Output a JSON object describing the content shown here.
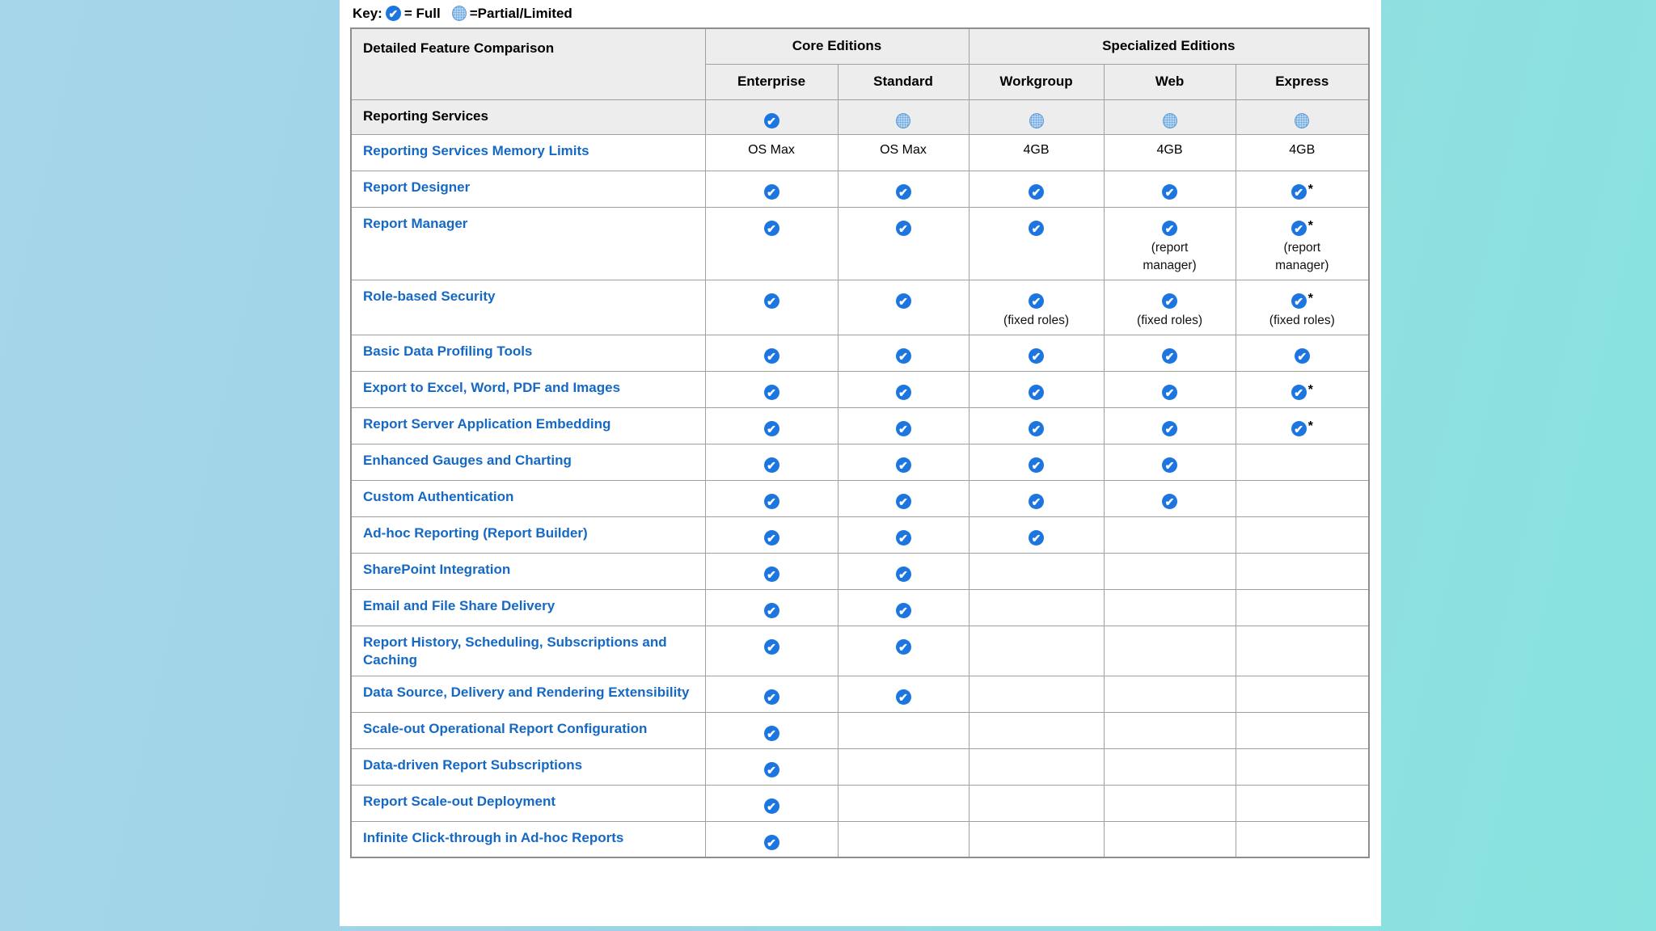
{
  "colors": {
    "bg_left": "#a6d7e9",
    "bg_right": "#87e3df",
    "page_bg": "#ffffff",
    "header_bg": "#ededed",
    "link_blue": "#1569c4",
    "icon_blue": "#1d76e0",
    "partial_fill": "#b3d4f2",
    "partial_border": "#5e9ad2",
    "border_grey": "#a0a0a0"
  },
  "icons": {
    "full": "check-circle-icon",
    "partial": "dotted-circle-icon"
  },
  "key": {
    "label": "Key:",
    "full_text": "= Full",
    "partial_text": "=Partial/Limited",
    "asterisk_symbol": "*"
  },
  "table": {
    "corner_header": "Detailed Feature Comparison",
    "groups": [
      {
        "label": "Core Editions",
        "span": 2
      },
      {
        "label": "Specialized Editions",
        "span": 3
      }
    ],
    "editions": [
      "Enterprise",
      "Standard",
      "Workgroup",
      "Web",
      "Express"
    ],
    "rows": [
      {
        "feature": "Reporting Services",
        "section": true,
        "cells": [
          {
            "type": "full"
          },
          {
            "type": "partial"
          },
          {
            "type": "partial"
          },
          {
            "type": "partial"
          },
          {
            "type": "partial"
          }
        ]
      },
      {
        "feature": "Reporting Services Memory Limits",
        "cells": [
          {
            "type": "text",
            "text": "OS Max"
          },
          {
            "type": "text",
            "text": "OS Max"
          },
          {
            "type": "text",
            "text": "4GB"
          },
          {
            "type": "text",
            "text": "4GB"
          },
          {
            "type": "text",
            "text": "4GB"
          }
        ]
      },
      {
        "feature": "Report Designer",
        "cells": [
          {
            "type": "full"
          },
          {
            "type": "full"
          },
          {
            "type": "full"
          },
          {
            "type": "full"
          },
          {
            "type": "full",
            "star": true
          }
        ]
      },
      {
        "feature": "Report Manager",
        "cells": [
          {
            "type": "full"
          },
          {
            "type": "full"
          },
          {
            "type": "full"
          },
          {
            "type": "full",
            "note": "(report manager)"
          },
          {
            "type": "full",
            "star": true,
            "note": "(report manager)"
          }
        ]
      },
      {
        "feature": "Role-based Security",
        "cells": [
          {
            "type": "full"
          },
          {
            "type": "full"
          },
          {
            "type": "full",
            "note": "(fixed roles)"
          },
          {
            "type": "full",
            "note": "(fixed roles)"
          },
          {
            "type": "full",
            "star": true,
            "note": "(fixed roles)"
          }
        ]
      },
      {
        "feature": "Basic Data Profiling Tools",
        "cells": [
          {
            "type": "full"
          },
          {
            "type": "full"
          },
          {
            "type": "full"
          },
          {
            "type": "full"
          },
          {
            "type": "full"
          }
        ]
      },
      {
        "feature": "Export to Excel, Word, PDF and Images",
        "cells": [
          {
            "type": "full"
          },
          {
            "type": "full"
          },
          {
            "type": "full"
          },
          {
            "type": "full"
          },
          {
            "type": "full",
            "star": true
          }
        ]
      },
      {
        "feature": "Report Server Application Embedding",
        "cells": [
          {
            "type": "full"
          },
          {
            "type": "full"
          },
          {
            "type": "full"
          },
          {
            "type": "full"
          },
          {
            "type": "full",
            "star": true
          }
        ]
      },
      {
        "feature": "Enhanced Gauges and Charting",
        "cells": [
          {
            "type": "full"
          },
          {
            "type": "full"
          },
          {
            "type": "full"
          },
          {
            "type": "full"
          },
          {
            "type": "empty"
          }
        ]
      },
      {
        "feature": "Custom Authentication",
        "cells": [
          {
            "type": "full"
          },
          {
            "type": "full"
          },
          {
            "type": "full"
          },
          {
            "type": "full"
          },
          {
            "type": "empty"
          }
        ]
      },
      {
        "feature": "Ad-hoc Reporting (Report Builder)",
        "cells": [
          {
            "type": "full"
          },
          {
            "type": "full"
          },
          {
            "type": "full"
          },
          {
            "type": "empty"
          },
          {
            "type": "empty"
          }
        ]
      },
      {
        "feature": "SharePoint Integration",
        "cells": [
          {
            "type": "full"
          },
          {
            "type": "full"
          },
          {
            "type": "empty"
          },
          {
            "type": "empty"
          },
          {
            "type": "empty"
          }
        ]
      },
      {
        "feature": "Email and File Share Delivery",
        "cells": [
          {
            "type": "full"
          },
          {
            "type": "full"
          },
          {
            "type": "empty"
          },
          {
            "type": "empty"
          },
          {
            "type": "empty"
          }
        ]
      },
      {
        "feature": "Report History, Scheduling, Subscriptions and Caching",
        "cells": [
          {
            "type": "full"
          },
          {
            "type": "full"
          },
          {
            "type": "empty"
          },
          {
            "type": "empty"
          },
          {
            "type": "empty"
          }
        ]
      },
      {
        "feature": "Data Source, Delivery and Rendering Extensibility",
        "cells": [
          {
            "type": "full"
          },
          {
            "type": "full"
          },
          {
            "type": "empty"
          },
          {
            "type": "empty"
          },
          {
            "type": "empty"
          }
        ]
      },
      {
        "feature": "Scale-out Operational Report Configuration",
        "cells": [
          {
            "type": "full"
          },
          {
            "type": "empty"
          },
          {
            "type": "empty"
          },
          {
            "type": "empty"
          },
          {
            "type": "empty"
          }
        ]
      },
      {
        "feature": "Data-driven Report Subscriptions",
        "cells": [
          {
            "type": "full"
          },
          {
            "type": "empty"
          },
          {
            "type": "empty"
          },
          {
            "type": "empty"
          },
          {
            "type": "empty"
          }
        ]
      },
      {
        "feature": "Report Scale-out Deployment",
        "cells": [
          {
            "type": "full"
          },
          {
            "type": "empty"
          },
          {
            "type": "empty"
          },
          {
            "type": "empty"
          },
          {
            "type": "empty"
          }
        ]
      },
      {
        "feature": "Infinite Click-through in Ad-hoc Reports",
        "cells": [
          {
            "type": "full"
          },
          {
            "type": "empty"
          },
          {
            "type": "empty"
          },
          {
            "type": "empty"
          },
          {
            "type": "empty"
          }
        ]
      }
    ]
  }
}
